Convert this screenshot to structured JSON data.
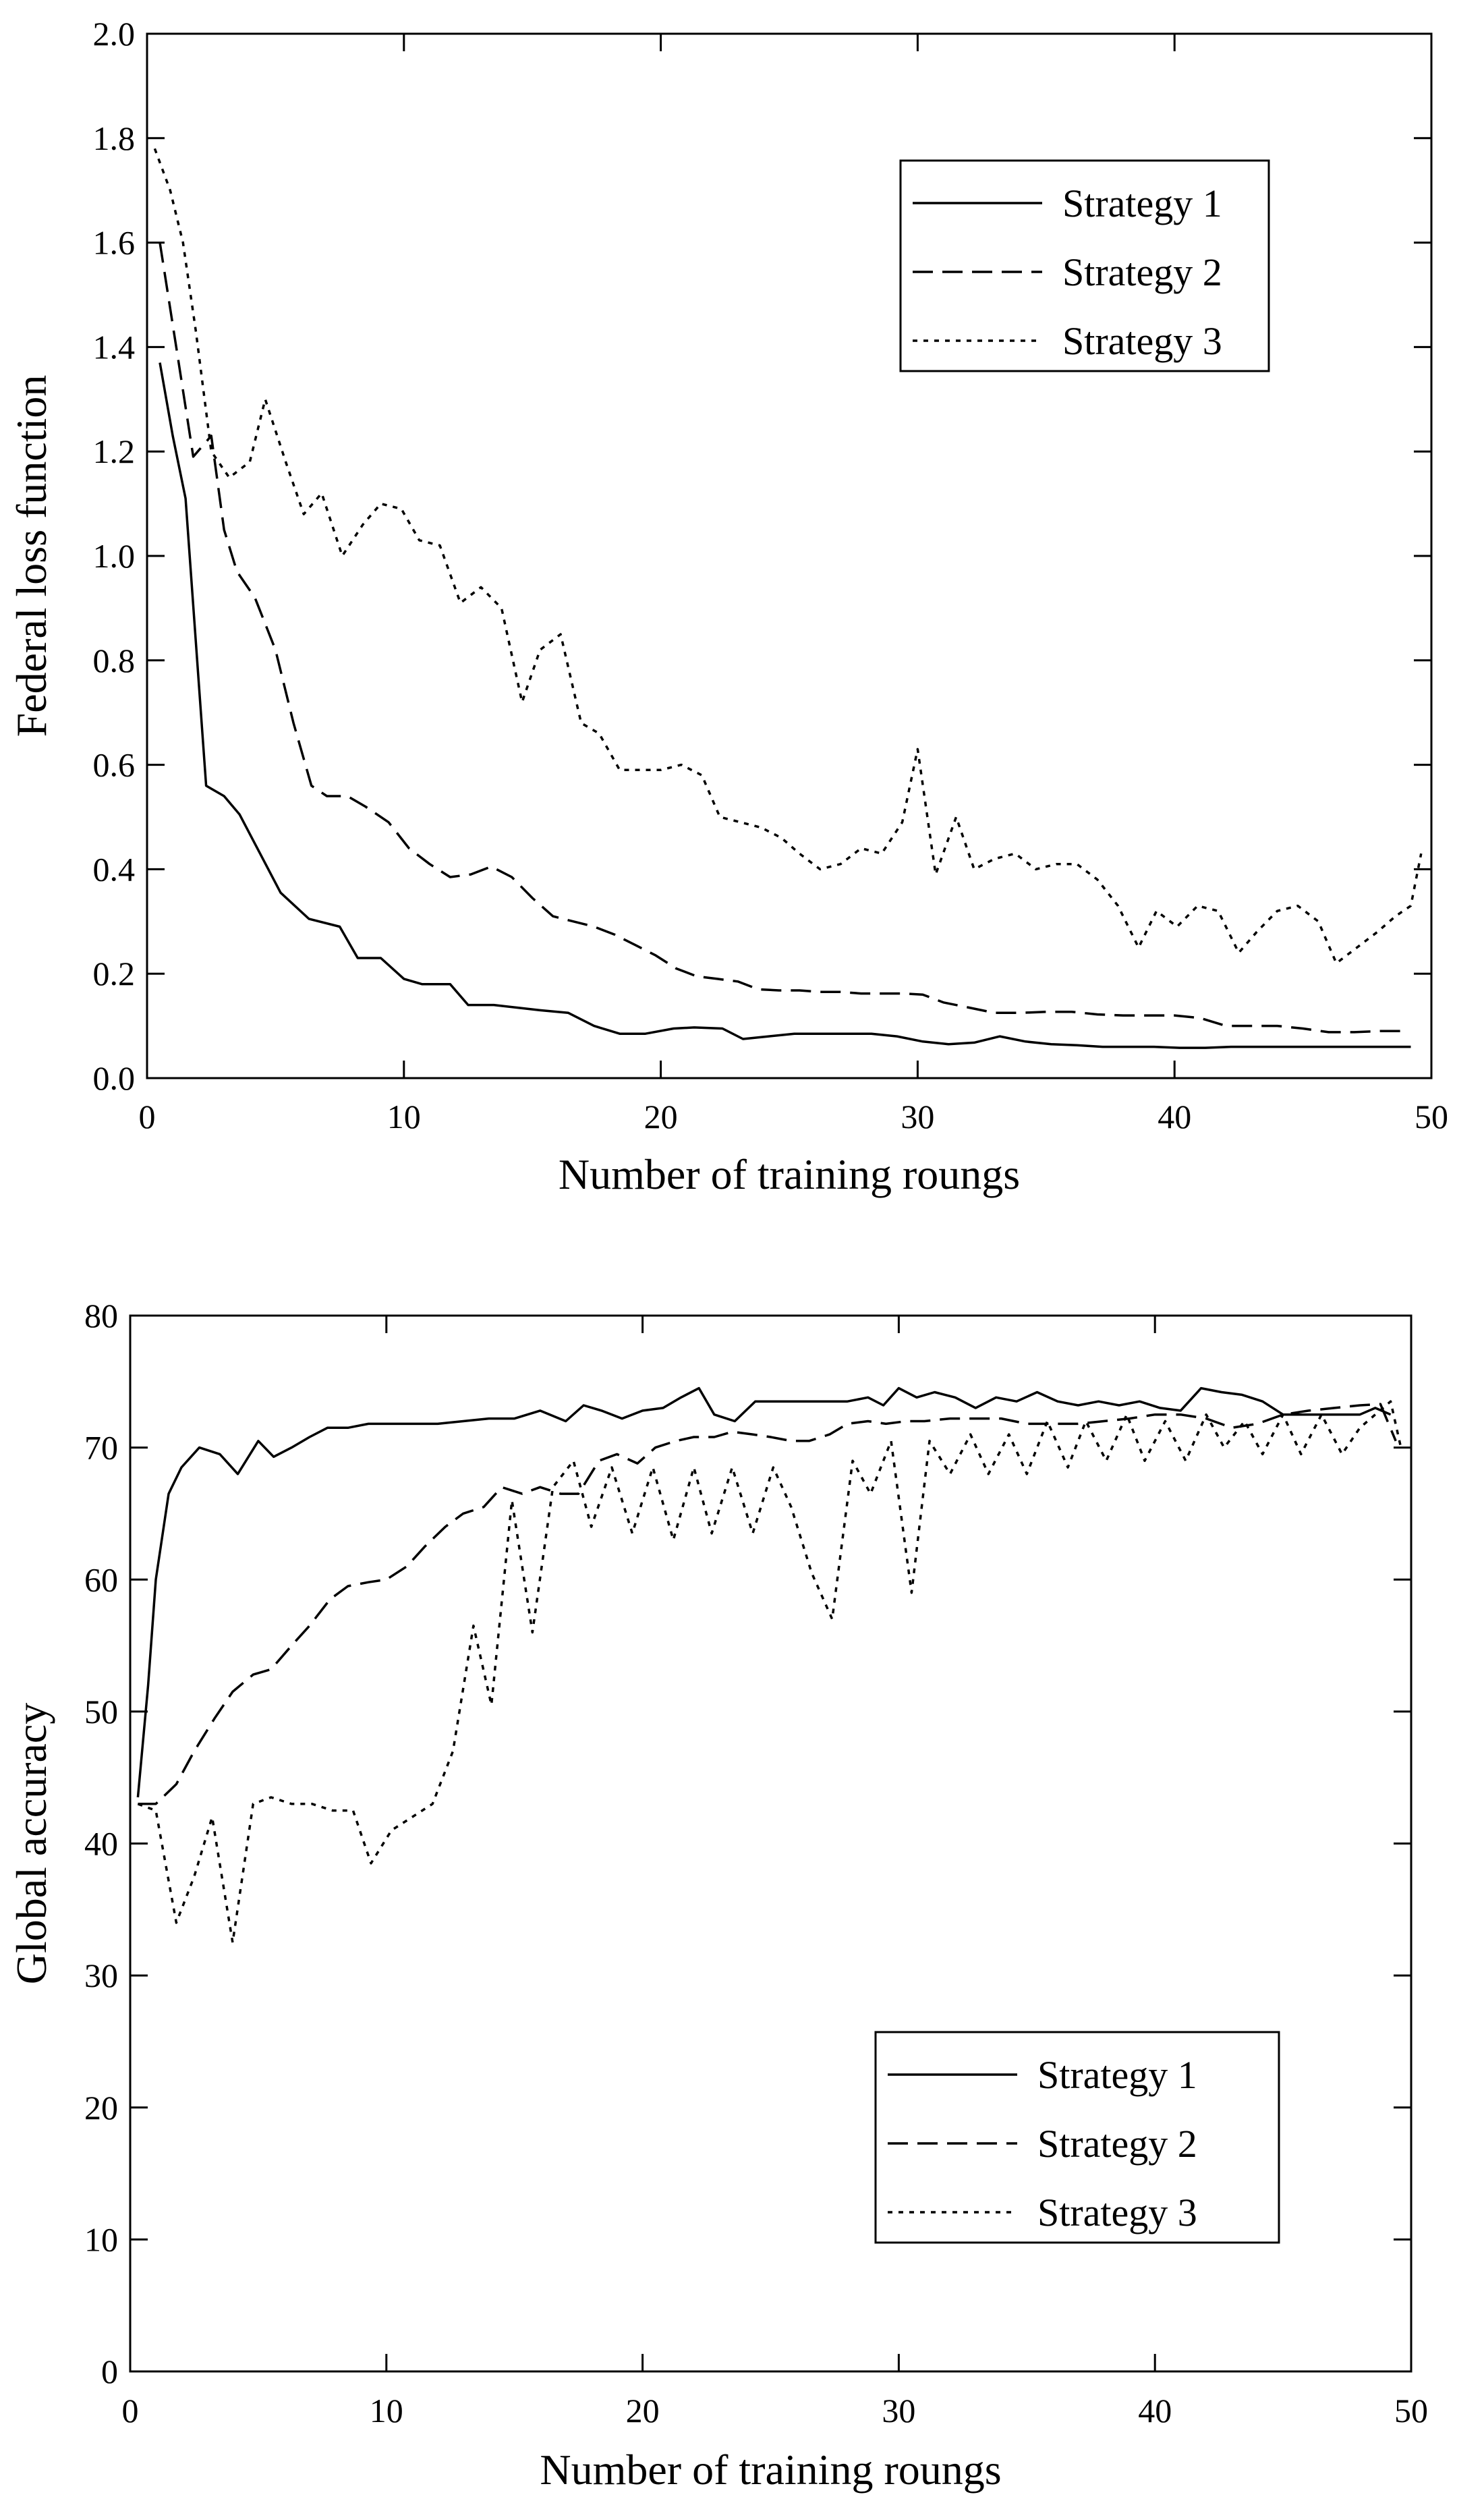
{
  "chart_data": [
    {
      "type": "line",
      "title": "",
      "xlabel": "Number of training roungs",
      "ylabel": "Federal loss function",
      "xlim": [
        0,
        50
      ],
      "ylim": [
        0,
        2.0
      ],
      "xticks": [
        0,
        10,
        20,
        30,
        40,
        50
      ],
      "yticks": [
        0.0,
        0.2,
        0.4,
        0.6,
        0.8,
        1.0,
        1.2,
        1.4,
        1.6,
        1.8,
        2.0
      ],
      "xtick_labels": [
        "0",
        "10",
        "20",
        "30",
        "40",
        "50"
      ],
      "ytick_labels": [
        "0.0",
        "0.2",
        "0.4",
        "0.6",
        "0.8",
        "1.0",
        "1.2",
        "1.4",
        "1.6",
        "1.8",
        "2.0"
      ],
      "legend_position": "top-right",
      "series": [
        {
          "name": "Strategy 1",
          "style": "solid",
          "x": [
            0.5,
            1,
            1.5,
            2.3,
            3,
            3.6,
            4.4,
            5.2,
            6.3,
            7.5,
            8.2,
            9.1,
            10,
            10.7,
            11.8,
            12.5,
            13.5,
            14.4,
            15.3,
            16.4,
            17.4,
            18.4,
            19.4,
            20.5,
            21.3,
            22.4,
            23.2,
            24.2,
            25.2,
            26.2,
            27.3,
            28.2,
            29.2,
            30.2,
            31.2,
            32.2,
            33.2,
            34.2,
            35.2,
            36.2,
            37.2,
            38.2,
            39.2,
            40.2,
            41.2,
            42.2,
            43.2,
            44.2,
            45.2,
            46.2,
            47.2,
            48.2,
            49.2
          ],
          "values": [
            1.37,
            1.23,
            1.11,
            0.56,
            0.54,
            0.505,
            0.43,
            0.355,
            0.305,
            0.29,
            0.23,
            0.23,
            0.19,
            0.18,
            0.18,
            0.14,
            0.14,
            0.135,
            0.13,
            0.125,
            0.1,
            0.085,
            0.085,
            0.095,
            0.097,
            0.095,
            0.075,
            0.08,
            0.085,
            0.085,
            0.085,
            0.085,
            0.08,
            0.07,
            0.065,
            0.068,
            0.08,
            0.07,
            0.065,
            0.063,
            0.06,
            0.06,
            0.06,
            0.058,
            0.058,
            0.06,
            0.06,
            0.06,
            0.06,
            0.06,
            0.06,
            0.06,
            0.06
          ]
        },
        {
          "name": "Strategy 2",
          "style": "dashed",
          "x": [
            0.5,
            1.2,
            1.8,
            2.5,
            3,
            3.5,
            4.2,
            5,
            5.7,
            6.4,
            7,
            7.8,
            8.5,
            9.4,
            10.2,
            11,
            11.8,
            12.6,
            13.4,
            14.2,
            15,
            15.8,
            16.6,
            17.4,
            18.2,
            19,
            19.8,
            20.6,
            21.4,
            22.2,
            23,
            23.8,
            24.6,
            25.4,
            26.2,
            27,
            27.8,
            28.6,
            29.4,
            30.2,
            31,
            32,
            33,
            34,
            35,
            36,
            37,
            38,
            39,
            40,
            41,
            42,
            43,
            44,
            45,
            46,
            47,
            48,
            49
          ],
          "values": [
            1.6,
            1.38,
            1.19,
            1.23,
            1.05,
            0.97,
            0.92,
            0.82,
            0.68,
            0.56,
            0.54,
            0.54,
            0.52,
            0.49,
            0.44,
            0.41,
            0.385,
            0.39,
            0.405,
            0.385,
            0.345,
            0.31,
            0.3,
            0.29,
            0.275,
            0.255,
            0.235,
            0.21,
            0.195,
            0.19,
            0.185,
            0.17,
            0.168,
            0.168,
            0.165,
            0.165,
            0.162,
            0.162,
            0.162,
            0.16,
            0.145,
            0.135,
            0.125,
            0.125,
            0.127,
            0.127,
            0.122,
            0.12,
            0.12,
            0.12,
            0.115,
            0.1,
            0.1,
            0.1,
            0.095,
            0.088,
            0.088,
            0.09,
            0.09
          ]
        },
        {
          "name": "Strategy 3",
          "style": "dotted",
          "x": [
            0.3,
            0.9,
            1.4,
            1.9,
            2.5,
            3.2,
            4,
            4.6,
            5.4,
            6.1,
            6.8,
            7.6,
            8.4,
            9.1,
            9.9,
            10.6,
            11.4,
            12.2,
            13,
            13.8,
            14.6,
            15.3,
            16.1,
            16.9,
            17.6,
            18.4,
            19.2,
            20,
            20.8,
            21.6,
            22.3,
            23.1,
            23.9,
            24.7,
            25.4,
            26.2,
            27,
            27.8,
            28.6,
            29.4,
            30,
            30.7,
            31.5,
            32.2,
            33,
            33.8,
            34.6,
            35.4,
            36.2,
            37,
            37.8,
            38.6,
            39.3,
            40.1,
            40.9,
            41.7,
            42.5,
            43.2,
            44,
            44.8,
            45.6,
            46.3,
            47.1,
            47.9,
            48.6,
            49.2,
            49.6
          ],
          "values": [
            1.78,
            1.7,
            1.6,
            1.43,
            1.2,
            1.15,
            1.18,
            1.3,
            1.18,
            1.08,
            1.12,
            1.0,
            1.06,
            1.1,
            1.09,
            1.03,
            1.02,
            0.91,
            0.94,
            0.9,
            0.72,
            0.82,
            0.85,
            0.68,
            0.66,
            0.59,
            0.59,
            0.59,
            0.6,
            0.58,
            0.5,
            0.49,
            0.48,
            0.46,
            0.43,
            0.4,
            0.41,
            0.44,
            0.43,
            0.49,
            0.63,
            0.39,
            0.5,
            0.4,
            0.42,
            0.43,
            0.4,
            0.41,
            0.41,
            0.38,
            0.33,
            0.25,
            0.32,
            0.29,
            0.33,
            0.32,
            0.24,
            0.28,
            0.32,
            0.33,
            0.3,
            0.22,
            0.25,
            0.28,
            0.31,
            0.33,
            0.43
          ]
        }
      ]
    },
    {
      "type": "line",
      "title": "",
      "xlabel": "Number of training roungs",
      "ylabel": "Global accuracy",
      "xlim": [
        0,
        50
      ],
      "ylim": [
        0,
        80
      ],
      "xticks": [
        0,
        10,
        20,
        30,
        40,
        50
      ],
      "yticks": [
        0,
        10,
        20,
        30,
        40,
        50,
        60,
        70,
        80
      ],
      "xtick_labels": [
        "0",
        "10",
        "20",
        "30",
        "40",
        "50"
      ],
      "ytick_labels": [
        "0",
        "10",
        "20",
        "30",
        "40",
        "50",
        "60",
        "70",
        "80"
      ],
      "legend_position": "bottom-right",
      "series": [
        {
          "name": "Strategy 1",
          "style": "solid",
          "x": [
            0.3,
            0.7,
            1,
            1.5,
            2,
            2.7,
            3.5,
            4.2,
            5,
            5.6,
            6.3,
            7,
            7.7,
            8.5,
            9.3,
            10,
            11,
            12,
            13,
            14,
            15,
            16,
            17,
            17.7,
            18.4,
            19.2,
            20,
            20.8,
            21.5,
            22.2,
            22.8,
            23.6,
            24.4,
            25.2,
            26,
            27,
            28,
            28.8,
            29.4,
            30,
            30.7,
            31.4,
            32.2,
            33,
            33.8,
            34.6,
            35.4,
            36.2,
            37,
            37.8,
            38.6,
            39.4,
            40.2,
            41,
            41.8,
            42.6,
            43.4,
            44.2,
            45,
            46,
            47,
            48,
            48.6,
            49.2
          ],
          "values": [
            43.5,
            52,
            60,
            66.5,
            68.5,
            70,
            69.5,
            68,
            70.5,
            69.3,
            70,
            70.8,
            71.5,
            71.5,
            71.8,
            71.8,
            71.8,
            71.8,
            72,
            72.2,
            72.2,
            72.8,
            72,
            73.2,
            72.8,
            72.2,
            72.8,
            73,
            73.8,
            74.5,
            72.5,
            72,
            73.5,
            73.5,
            73.5,
            73.5,
            73.5,
            73.8,
            73.2,
            74.5,
            73.8,
            74.2,
            73.8,
            73.0,
            73.8,
            73.5,
            74.2,
            73.5,
            73.2,
            73.5,
            73.2,
            73.5,
            73.0,
            72.8,
            74.5,
            74.2,
            74.0,
            73.5,
            72.5,
            72.5,
            72.5,
            72.5,
            73.0,
            72.5
          ]
        },
        {
          "name": "Strategy 2",
          "style": "dashed",
          "x": [
            0.3,
            1,
            1.8,
            2.5,
            3.3,
            4,
            4.8,
            5.5,
            6.3,
            7,
            7.8,
            8.5,
            9.3,
            10,
            10.8,
            11.5,
            12.3,
            13,
            13.8,
            14.5,
            15.3,
            16,
            16.8,
            17.5,
            18.3,
            19,
            19.8,
            20.5,
            21.3,
            22,
            22.8,
            23.5,
            24.3,
            25,
            25.8,
            26.5,
            27.3,
            28,
            28.8,
            29.5,
            30.3,
            31,
            32,
            33,
            34,
            35,
            36,
            37,
            38,
            39,
            40,
            41,
            42,
            43,
            44,
            45,
            46,
            47,
            48,
            48.8,
            49.4
          ],
          "values": [
            43,
            43,
            44.5,
            47,
            49.5,
            51.5,
            52.8,
            53.2,
            55,
            56.5,
            58.5,
            59.5,
            59.8,
            60,
            61,
            62.5,
            64,
            65,
            65.5,
            67,
            66.5,
            67,
            66.5,
            66.5,
            69,
            69.5,
            68.8,
            70,
            70.5,
            70.8,
            70.8,
            71.2,
            71,
            70.8,
            70.5,
            70.5,
            71,
            71.8,
            72,
            71.8,
            72,
            72,
            72.2,
            72.2,
            72.2,
            71.8,
            71.8,
            71.8,
            72,
            72.2,
            72.5,
            72.5,
            72.2,
            71.5,
            71.8,
            72.5,
            72.8,
            73,
            73.2,
            73.3,
            70.5
          ]
        },
        {
          "name": "Strategy 3",
          "style": "dotted",
          "x": [
            0.3,
            1,
            1.8,
            2.5,
            3.2,
            4,
            4.8,
            5.5,
            6.3,
            7.1,
            7.9,
            8.7,
            9.4,
            10.2,
            11,
            11.8,
            12.6,
            13.4,
            14.1,
            14.9,
            15.7,
            16.5,
            17.3,
            18,
            18.8,
            19.6,
            20.4,
            21.2,
            22,
            22.7,
            23.5,
            24.3,
            25.1,
            25.8,
            26.6,
            27.4,
            28.2,
            28.9,
            29.7,
            30.5,
            31.2,
            32,
            32.8,
            33.5,
            34.3,
            35,
            35.8,
            36.6,
            37.3,
            38.1,
            38.9,
            39.6,
            40.4,
            41.2,
            42,
            42.7,
            43.5,
            44.2,
            45,
            45.7,
            46.5,
            47.3,
            48,
            48.6,
            49.2,
            49.6
          ],
          "values": [
            43,
            42.5,
            34,
            37.5,
            42,
            32.5,
            43,
            43.5,
            43,
            43,
            42.5,
            42.5,
            38.5,
            41,
            42,
            43,
            47,
            56.5,
            50.5,
            66,
            56,
            67,
            69,
            64,
            68.5,
            63.5,
            68.5,
            63,
            68.5,
            63.5,
            68.5,
            63.5,
            68.5,
            65.5,
            60.5,
            57,
            69,
            66.5,
            70.5,
            59,
            70.5,
            68,
            71,
            68,
            71,
            68,
            72,
            68.5,
            72,
            69,
            72.5,
            69,
            72,
            69,
            72.5,
            70,
            72,
            69.5,
            72.5,
            69.5,
            72.5,
            69.5,
            71.5,
            72.5,
            73.5,
            70
          ]
        }
      ]
    }
  ]
}
